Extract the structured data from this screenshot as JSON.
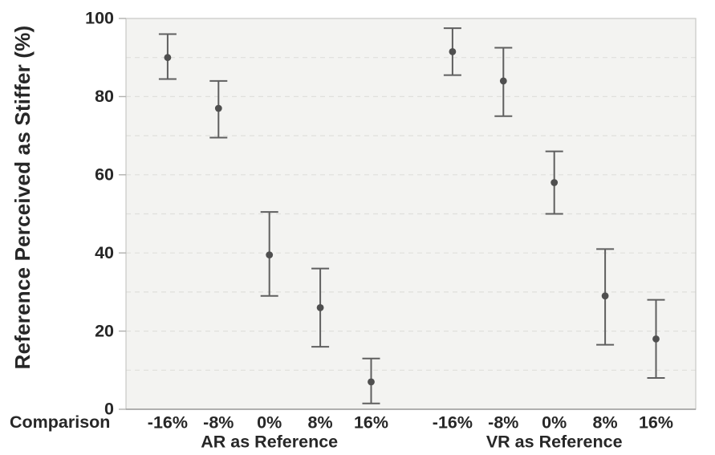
{
  "chart_data": {
    "type": "scatter",
    "title": "",
    "ylabel": "Reference Perceived as Stiffer (%)",
    "xaxis_prefix": "Comparison",
    "ylim": [
      0,
      100
    ],
    "yticks": [
      0,
      20,
      40,
      60,
      80,
      100
    ],
    "gridline_step": 10,
    "grid": "dashed horizontal every 10",
    "legend": "none",
    "marker": "filled circle with T-capped error bars",
    "groups": [
      {
        "label": "AR as Reference",
        "categories": [
          "-16%",
          "-8%",
          "0%",
          "8%",
          "16%"
        ],
        "points": [
          {
            "cat": "-16%",
            "mean": 90,
            "lo": 84.5,
            "hi": 96
          },
          {
            "cat": "-8%",
            "mean": 77,
            "lo": 69.5,
            "hi": 84
          },
          {
            "cat": "0%",
            "mean": 39.5,
            "lo": 29,
            "hi": 50.5
          },
          {
            "cat": "8%",
            "mean": 26,
            "lo": 16,
            "hi": 36
          },
          {
            "cat": "16%",
            "mean": 7,
            "lo": 1.5,
            "hi": 13
          }
        ]
      },
      {
        "label": "VR as Reference",
        "categories": [
          "-16%",
          "-8%",
          "0%",
          "8%",
          "16%"
        ],
        "points": [
          {
            "cat": "-16%",
            "mean": 91.5,
            "lo": 85.5,
            "hi": 97.5
          },
          {
            "cat": "-8%",
            "mean": 84,
            "lo": 75,
            "hi": 92.5
          },
          {
            "cat": "0%",
            "mean": 58,
            "lo": 50,
            "hi": 66
          },
          {
            "cat": "8%",
            "mean": 29,
            "lo": 16.5,
            "hi": 41
          },
          {
            "cat": "16%",
            "mean": 18,
            "lo": 8,
            "hi": 28
          }
        ]
      }
    ],
    "colors": {
      "point": "#4f4f4f",
      "error_bar": "#5f5f5f",
      "plot_bg": "#f3f3f1",
      "grid": "#dfdfdc",
      "border": "#c7c7c4",
      "axis_line": "#9a9a9a",
      "tick": "#b0b0ae",
      "text": "#272727"
    }
  }
}
